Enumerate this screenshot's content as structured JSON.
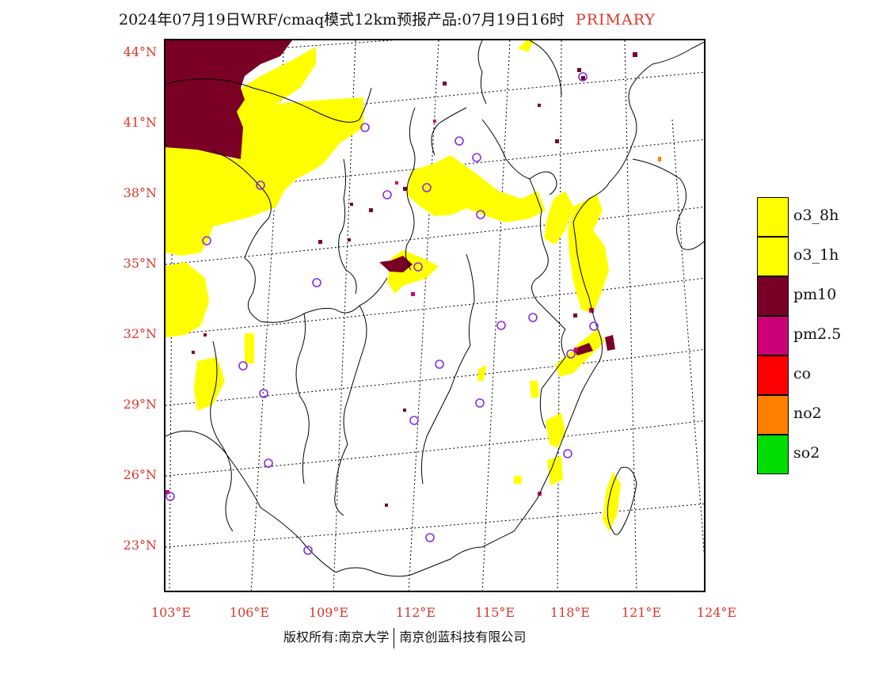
{
  "title": {
    "text": "2024年07月19日WRF/cmaq模式12km预报产品:07月19日16时",
    "tag": "PRIMARY"
  },
  "map": {
    "lat_labels": [
      "44°N",
      "41°N",
      "38°N",
      "35°N",
      "32°N",
      "29°N",
      "26°N",
      "23°N"
    ],
    "lon_labels": [
      "103°E",
      "106°E",
      "109°E",
      "112°E",
      "115°E",
      "118°E",
      "121°E",
      "124°E"
    ],
    "grid_style": "dotted",
    "pollutant_colors": {
      "o3": "#ffff00",
      "pm10": "#7a0026",
      "pm2_5": "#cc0077",
      "no2": "#ff7f00",
      "station": "#8a2be2"
    }
  },
  "legend": [
    {
      "label": "o3_8h",
      "color": "#ffff00"
    },
    {
      "label": "o3_1h",
      "color": "#ffff00"
    },
    {
      "label": "pm10",
      "color": "#7a0026"
    },
    {
      "label": "pm2.5",
      "color": "#cc0077"
    },
    {
      "label": "co",
      "color": "#ff0000"
    },
    {
      "label": "no2",
      "color": "#ff7f00"
    },
    {
      "label": "so2",
      "color": "#00dd00"
    }
  ],
  "credit": {
    "left": "版权所有:南京大学",
    "right": "南京创蓝科技有限公司"
  }
}
